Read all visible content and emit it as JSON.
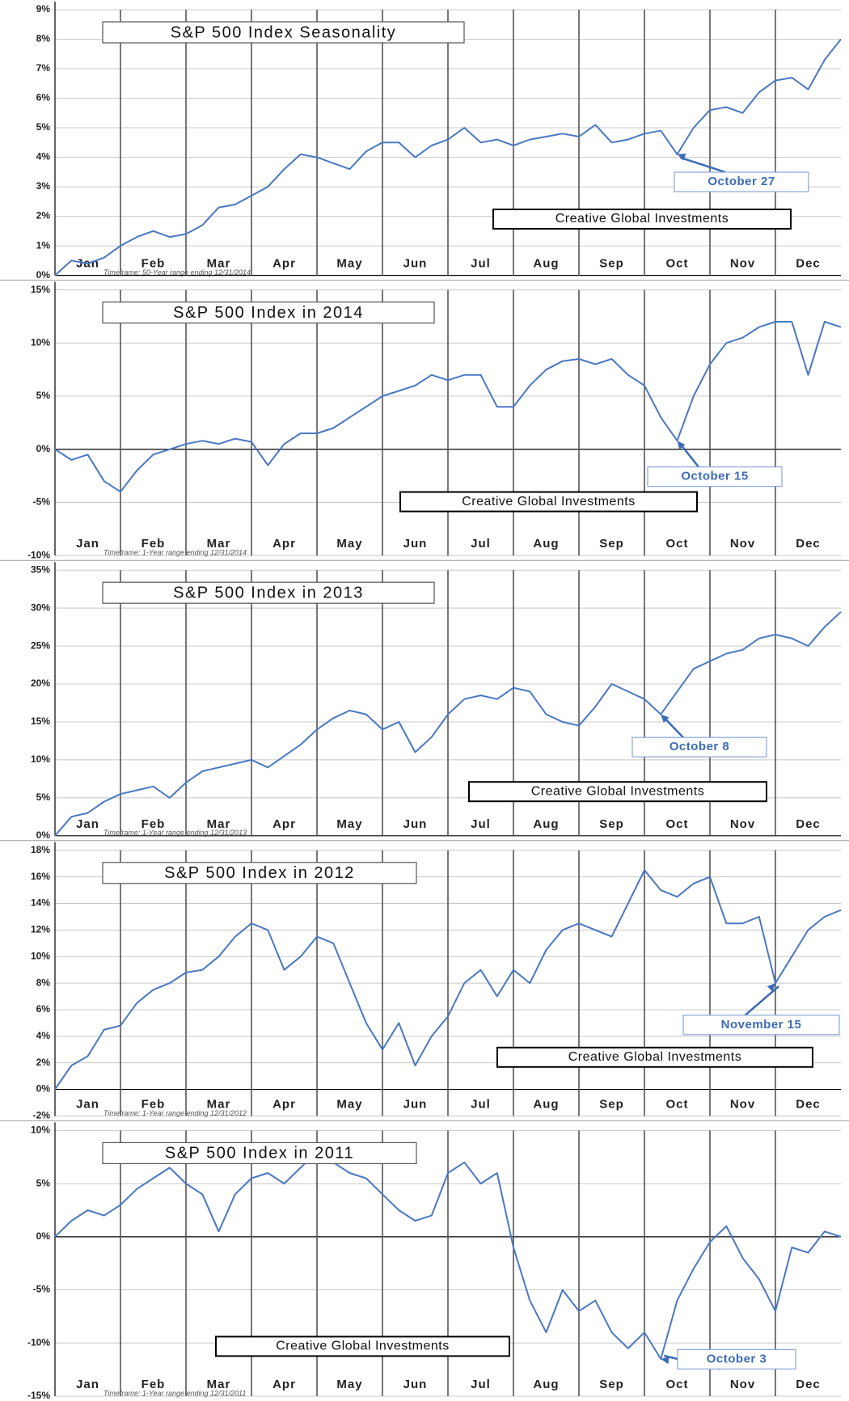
{
  "chart_data": [
    {
      "type": "line",
      "title": "S&P 500 Index Seasonality",
      "annotation": "October 27",
      "watermark": "Creative Global Investments",
      "timeframe": "Timeframe: 50-Year range ending 12/31/2014",
      "month_labels": [
        "Jan",
        "Feb",
        "Mar",
        "Apr",
        "May",
        "Jun",
        "Jul",
        "Aug",
        "Sep",
        "Oct",
        "Nov",
        "Dec"
      ],
      "xlim": [
        0,
        12
      ],
      "ylim": [
        0,
        9
      ],
      "yticks": [
        {
          "value": 0,
          "label": "0%"
        },
        {
          "value": 1,
          "label": "1%"
        },
        {
          "value": 2,
          "label": "2%"
        },
        {
          "value": 3,
          "label": "3%"
        },
        {
          "value": 4,
          "label": "4%"
        },
        {
          "value": 5,
          "label": "5%"
        },
        {
          "value": 6,
          "label": "6%"
        },
        {
          "value": 7,
          "label": "7%"
        },
        {
          "value": 8,
          "label": "8%"
        },
        {
          "value": 9,
          "label": "9%"
        }
      ],
      "x": [
        0,
        0.25,
        0.5,
        0.75,
        1,
        1.25,
        1.5,
        1.75,
        2,
        2.25,
        2.5,
        2.75,
        3,
        3.25,
        3.5,
        3.75,
        4,
        4.25,
        4.5,
        4.75,
        5,
        5.25,
        5.5,
        5.75,
        6,
        6.25,
        6.5,
        6.75,
        7,
        7.25,
        7.5,
        7.75,
        8,
        8.25,
        8.5,
        8.75,
        9,
        9.25,
        9.5,
        9.75,
        10,
        10.25,
        10.5,
        10.75,
        11,
        11.25,
        11.5,
        11.75,
        12
      ],
      "series": [
        {
          "color": "#4a78c2",
          "values": [
            0,
            0.5,
            0.4,
            0.6,
            1.0,
            1.3,
            1.5,
            1.3,
            1.4,
            1.7,
            2.3,
            2.4,
            2.7,
            3.0,
            3.6,
            4.1,
            4.0,
            3.8,
            3.6,
            4.2,
            4.5,
            4.5,
            4.0,
            4.4,
            4.6,
            5.0,
            4.5,
            4.6,
            4.4,
            4.6,
            4.7,
            4.8,
            4.7,
            5.1,
            4.5,
            4.6,
            4.8,
            4.9,
            4.1,
            5.0,
            5.6,
            5.7,
            5.5,
            6.2,
            6.6,
            6.7,
            6.3,
            7.3,
            8.0
          ]
        }
      ]
    },
    {
      "type": "line",
      "title": "S&P 500 Index in 2014",
      "annotation": "October 15",
      "watermark": "Creative Global Investments",
      "timeframe": "Timeframe: 1-Year range ending 12/31/2014",
      "month_labels": [
        "Jan",
        "Feb",
        "Mar",
        "Apr",
        "May",
        "Jun",
        "Jul",
        "Aug",
        "Sep",
        "Oct",
        "Nov",
        "Dec"
      ],
      "xlim": [
        0,
        12
      ],
      "ylim": [
        -10,
        15
      ],
      "yticks": [
        {
          "value": -10,
          "label": "-10%"
        },
        {
          "value": -5,
          "label": "-5%"
        },
        {
          "value": 0,
          "label": "0%"
        },
        {
          "value": 5,
          "label": "5%"
        },
        {
          "value": 10,
          "label": "10%"
        },
        {
          "value": 15,
          "label": "15%"
        }
      ],
      "x": [
        0,
        0.25,
        0.5,
        0.75,
        1,
        1.25,
        1.5,
        1.75,
        2,
        2.25,
        2.5,
        2.75,
        3,
        3.25,
        3.5,
        3.75,
        4,
        4.25,
        4.5,
        4.75,
        5,
        5.25,
        5.5,
        5.75,
        6,
        6.25,
        6.5,
        6.75,
        7,
        7.25,
        7.5,
        7.75,
        8,
        8.25,
        8.5,
        8.75,
        9,
        9.25,
        9.5,
        9.75,
        10,
        10.25,
        10.5,
        10.75,
        11,
        11.25,
        11.5,
        11.75,
        12
      ],
      "series": [
        {
          "color": "#4a78c2",
          "values": [
            0,
            -1,
            -0.5,
            -3,
            -4,
            -2,
            -0.5,
            0,
            0.5,
            0.8,
            0.5,
            1,
            0.7,
            -1.5,
            0.5,
            1.5,
            1.5,
            2,
            3,
            4,
            5,
            5.5,
            6,
            7,
            6.5,
            7,
            7,
            4,
            4,
            6,
            7.5,
            8.3,
            8.5,
            8,
            8.5,
            7,
            6,
            3,
            0.8,
            5,
            8,
            10,
            10.5,
            11.5,
            12,
            12,
            7,
            12,
            11.5
          ]
        }
      ]
    },
    {
      "type": "line",
      "title": "S&P 500 Index in 2013",
      "annotation": "October 8",
      "watermark": "Creative Global Investments",
      "timeframe": "Timeframe: 1-Year range ending 12/31/2013",
      "month_labels": [
        "Jan",
        "Feb",
        "Mar",
        "Apr",
        "May",
        "Jun",
        "Jul",
        "Aug",
        "Sep",
        "Oct",
        "Nov",
        "Dec"
      ],
      "xlim": [
        0,
        12
      ],
      "ylim": [
        0,
        35
      ],
      "yticks": [
        {
          "value": 0,
          "label": "0%"
        },
        {
          "value": 5,
          "label": "5%"
        },
        {
          "value": 10,
          "label": "10%"
        },
        {
          "value": 15,
          "label": "15%"
        },
        {
          "value": 20,
          "label": "20%"
        },
        {
          "value": 25,
          "label": "25%"
        },
        {
          "value": 30,
          "label": "30%"
        },
        {
          "value": 35,
          "label": "35%"
        }
      ],
      "x": [
        0,
        0.25,
        0.5,
        0.75,
        1,
        1.25,
        1.5,
        1.75,
        2,
        2.25,
        2.5,
        2.75,
        3,
        3.25,
        3.5,
        3.75,
        4,
        4.25,
        4.5,
        4.75,
        5,
        5.25,
        5.5,
        5.75,
        6,
        6.25,
        6.5,
        6.75,
        7,
        7.25,
        7.5,
        7.75,
        8,
        8.25,
        8.5,
        8.75,
        9,
        9.25,
        9.5,
        9.75,
        10,
        10.25,
        10.5,
        10.75,
        11,
        11.25,
        11.5,
        11.75,
        12
      ],
      "series": [
        {
          "color": "#4a78c2",
          "values": [
            0,
            2.5,
            3,
            4.5,
            5.5,
            6,
            6.5,
            5,
            7,
            8.5,
            9,
            9.5,
            10,
            9,
            10.5,
            12,
            14,
            15.5,
            16.5,
            16,
            14,
            15,
            11,
            13,
            16,
            18,
            18.5,
            18,
            19.5,
            19,
            16,
            15,
            14.5,
            17,
            20,
            19,
            18,
            16,
            19,
            22,
            23,
            24,
            24.5,
            26,
            26.5,
            26,
            25,
            27.5,
            29.5
          ]
        }
      ]
    },
    {
      "type": "line",
      "title": "S&P 500 Index in 2012",
      "annotation": "November 15",
      "watermark": "Creative Global Investments",
      "timeframe": "Timeframe: 1-Year range ending 12/31/2012",
      "month_labels": [
        "Jan",
        "Feb",
        "Mar",
        "Apr",
        "May",
        "Jun",
        "Jul",
        "Aug",
        "Sep",
        "Oct",
        "Nov",
        "Dec"
      ],
      "xlim": [
        0,
        12
      ],
      "ylim": [
        -2,
        18
      ],
      "yticks": [
        {
          "value": -2,
          "label": "-2%"
        },
        {
          "value": 0,
          "label": "0%"
        },
        {
          "value": 2,
          "label": "2%"
        },
        {
          "value": 4,
          "label": "4%"
        },
        {
          "value": 6,
          "label": "6%"
        },
        {
          "value": 8,
          "label": "8%"
        },
        {
          "value": 10,
          "label": "10%"
        },
        {
          "value": 12,
          "label": "12%"
        },
        {
          "value": 14,
          "label": "14%"
        },
        {
          "value": 16,
          "label": "16%"
        },
        {
          "value": 18,
          "label": "18%"
        }
      ],
      "x": [
        0,
        0.25,
        0.5,
        0.75,
        1,
        1.25,
        1.5,
        1.75,
        2,
        2.25,
        2.5,
        2.75,
        3,
        3.25,
        3.5,
        3.75,
        4,
        4.25,
        4.5,
        4.75,
        5,
        5.25,
        5.5,
        5.75,
        6,
        6.25,
        6.5,
        6.75,
        7,
        7.25,
        7.5,
        7.75,
        8,
        8.25,
        8.5,
        8.75,
        9,
        9.25,
        9.5,
        9.75,
        10,
        10.25,
        10.5,
        10.75,
        11,
        11.25,
        11.5,
        11.75,
        12
      ],
      "series": [
        {
          "color": "#4a78c2",
          "values": [
            0,
            1.8,
            2.5,
            4.5,
            4.8,
            6.5,
            7.5,
            8,
            8.8,
            9,
            10,
            11.5,
            12.5,
            12,
            9,
            10,
            11.5,
            11,
            8,
            5,
            3,
            5,
            1.8,
            4,
            5.5,
            8,
            9,
            7,
            9,
            8,
            10.5,
            12,
            12.5,
            12,
            11.5,
            14,
            16.5,
            15,
            14.5,
            15.5,
            16,
            12.5,
            12.5,
            13,
            8,
            10,
            12,
            13,
            13.5
          ]
        }
      ]
    },
    {
      "type": "line",
      "title": "S&P 500 Index in 2011",
      "annotation": "October 3",
      "watermark": "Creative Global Investments",
      "timeframe": "Timeframe: 1-Year range ending 12/31/2011",
      "month_labels": [
        "Jan",
        "Feb",
        "Mar",
        "Apr",
        "May",
        "Jun",
        "Jul",
        "Aug",
        "Sep",
        "Oct",
        "Nov",
        "Dec"
      ],
      "xlim": [
        0,
        12
      ],
      "ylim": [
        -15,
        10
      ],
      "yticks": [
        {
          "value": -15,
          "label": "-15%"
        },
        {
          "value": -10,
          "label": "-10%"
        },
        {
          "value": -5,
          "label": "-5%"
        },
        {
          "value": 0,
          "label": "0%"
        },
        {
          "value": 5,
          "label": "5%"
        },
        {
          "value": 10,
          "label": "10%"
        }
      ],
      "x": [
        0,
        0.25,
        0.5,
        0.75,
        1,
        1.25,
        1.5,
        1.75,
        2,
        2.25,
        2.5,
        2.75,
        3,
        3.25,
        3.5,
        3.75,
        4,
        4.25,
        4.5,
        4.75,
        5,
        5.25,
        5.5,
        5.75,
        6,
        6.25,
        6.5,
        6.75,
        7,
        7.25,
        7.5,
        7.75,
        8,
        8.25,
        8.5,
        8.75,
        9,
        9.25,
        9.5,
        9.75,
        10,
        10.25,
        10.5,
        10.75,
        11,
        11.25,
        11.5,
        11.75,
        12
      ],
      "series": [
        {
          "color": "#4a78c2",
          "values": [
            0,
            1.5,
            2.5,
            2,
            3,
            4.5,
            5.5,
            6.5,
            5,
            4,
            0.5,
            4,
            5.5,
            6,
            5,
            6.5,
            8,
            7,
            6,
            5.5,
            4,
            2.5,
            1.5,
            2,
            6,
            7,
            5,
            6,
            -1,
            -6,
            -9,
            -5,
            -7,
            -6,
            -9,
            -10.5,
            -9,
            -11.5,
            -6,
            -3,
            -0.5,
            1,
            -2,
            -4,
            -7,
            -1,
            -1.5,
            0.5,
            0
          ]
        }
      ]
    }
  ]
}
